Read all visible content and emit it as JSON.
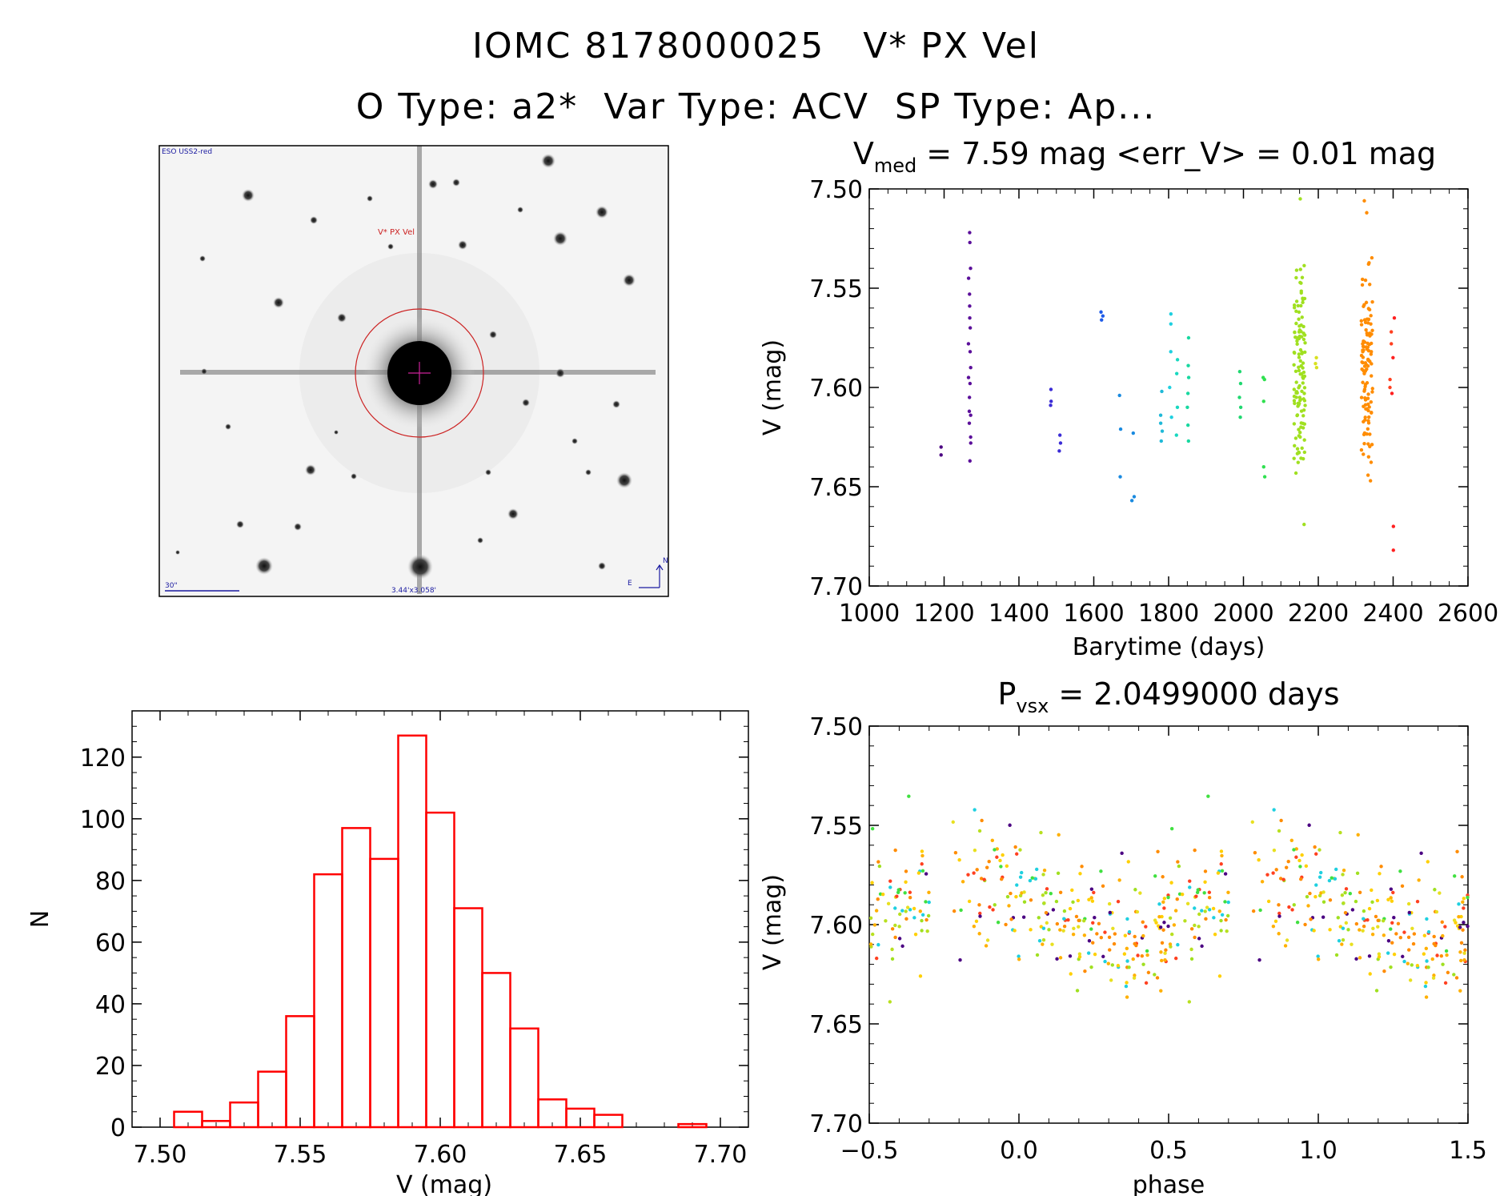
{
  "header": {
    "title": "IOMC 8178000025   V* PX Vel",
    "subtitle": "O Type: a2*  Var Type: ACV  SP Type: Ap..."
  },
  "finder": {
    "survey": "ESO USS2-red",
    "target_label": "V* PX Vel",
    "scale_label": "30\"",
    "fov_label": "3.44'x3.058'",
    "north": "N",
    "east": "E"
  },
  "chart_data": [
    {
      "id": "lightcurve",
      "type": "scatter",
      "title": "V_med = 7.59 mag <err_V> = 0.01 mag",
      "title_parts": {
        "V": "V",
        "sub": "med",
        "rest": " = 7.59 mag <err_V> = 0.01 mag"
      },
      "xlabel": "Barytime (days)",
      "ylabel": "V (mag)",
      "xlim": [
        1000,
        2600
      ],
      "ylim": [
        7.7,
        7.5
      ],
      "y_inverted": true,
      "xticks": [
        "1000",
        "1200",
        "1400",
        "1600",
        "1800",
        "2000",
        "2200",
        "2400",
        "2600"
      ],
      "yticks": [
        "7.50",
        "7.55",
        "7.60",
        "7.65",
        "7.70"
      ],
      "color_scale": "rainbow by time",
      "groups": [
        {
          "x": 1195,
          "color": "#4b0082",
          "values": [
            7.63,
            7.634
          ]
        },
        {
          "x": 1268,
          "color": "#5b0f9a",
          "values": [
            7.522,
            7.527,
            7.54,
            7.545,
            7.553,
            7.559,
            7.565,
            7.57,
            7.578,
            7.582,
            7.59,
            7.595,
            7.598,
            7.605,
            7.612,
            7.614,
            7.618,
            7.625,
            7.628,
            7.637
          ]
        },
        {
          "x": 1486,
          "color": "#3b2cd6",
          "values": [
            7.601,
            7.607,
            7.609
          ]
        },
        {
          "x": 1510,
          "color": "#3b2cd6",
          "values": [
            7.624,
            7.628,
            7.632
          ]
        },
        {
          "x": 1622,
          "color": "#1e5be8",
          "values": [
            7.562,
            7.564,
            7.566
          ]
        },
        {
          "x": 1672,
          "color": "#1a8ae0",
          "values": [
            7.604,
            7.621,
            7.645
          ]
        },
        {
          "x": 1705,
          "color": "#1a8ae0",
          "values": [
            7.623,
            7.655,
            7.657
          ]
        },
        {
          "x": 1780,
          "color": "#1fb9d8",
          "values": [
            7.602,
            7.614,
            7.618,
            7.622,
            7.627
          ]
        },
        {
          "x": 1805,
          "color": "#1fd0e0",
          "values": [
            7.563,
            7.568,
            7.582,
            7.6,
            7.615
          ]
        },
        {
          "x": 1822,
          "color": "#18d8c0",
          "values": [
            7.586,
            7.593,
            7.61,
            7.624
          ]
        },
        {
          "x": 1852,
          "color": "#18d8a0",
          "values": [
            7.575,
            7.589,
            7.595,
            7.603,
            7.61,
            7.619,
            7.627
          ]
        },
        {
          "x": 1990,
          "color": "#20d870",
          "values": [
            7.592,
            7.598,
            7.605,
            7.61,
            7.615
          ]
        },
        {
          "x": 2055,
          "color": "#30e050",
          "values": [
            7.595,
            7.596,
            7.607,
            7.64,
            7.645
          ]
        },
        {
          "x": 2150,
          "color": "#a0e020",
          "range": [
            7.533,
            7.655
          ],
          "count": 120,
          "outliers": [
            7.505,
            7.669
          ]
        },
        {
          "x": 2195,
          "color": "#d8e020",
          "values": [
            7.585,
            7.588,
            7.59
          ]
        },
        {
          "x": 2330,
          "color": "#ff8c00",
          "range": [
            7.533,
            7.647
          ],
          "count": 110,
          "outliers": [
            7.506,
            7.512
          ]
        },
        {
          "x": 2393,
          "color": "#ff4020",
          "values": [
            7.572,
            7.578,
            7.596,
            7.6
          ]
        },
        {
          "x": 2400,
          "color": "#ff2020",
          "values": [
            7.565,
            7.585,
            7.603,
            7.67,
            7.682
          ]
        }
      ]
    },
    {
      "id": "histogram",
      "type": "bar",
      "xlabel": "V (mag)",
      "ylabel": "N",
      "xlim": [
        7.49,
        7.71
      ],
      "ylim": [
        0,
        135
      ],
      "xticks": [
        "7.50",
        "7.55",
        "7.60",
        "7.65",
        "7.70"
      ],
      "yticks": [
        "0",
        "20",
        "40",
        "60",
        "80",
        "100",
        "120"
      ],
      "bar_color": "#ff0000",
      "bin_width": 0.01,
      "bin_starts": [
        7.505,
        7.515,
        7.525,
        7.535,
        7.545,
        7.555,
        7.565,
        7.575,
        7.585,
        7.595,
        7.605,
        7.615,
        7.625,
        7.635,
        7.645,
        7.655,
        7.665,
        7.675,
        7.685
      ],
      "values": [
        5,
        2,
        8,
        18,
        36,
        82,
        97,
        87,
        127,
        102,
        71,
        50,
        32,
        9,
        6,
        4,
        0,
        0,
        1
      ]
    },
    {
      "id": "phased",
      "type": "scatter",
      "title": "P_vsx = 2.0499000 days",
      "title_parts": {
        "P": "P",
        "sub": "vsx",
        "rest": " = 2.0499000 days"
      },
      "xlabel": "phase",
      "ylabel": "V (mag)",
      "xlim": [
        -0.5,
        1.5
      ],
      "ylim": [
        7.7,
        7.5
      ],
      "y_inverted": true,
      "xticks": [
        "−0.5",
        "0.0",
        "0.5",
        "1.0",
        "1.5"
      ],
      "yticks": [
        "7.50",
        "7.55",
        "7.60",
        "7.65",
        "7.70"
      ],
      "period_days": 2.0499,
      "sinusoid": {
        "mean": 7.592,
        "amp": 0.012,
        "scatter": 0.022
      },
      "colors": [
        "#ff8c00",
        "#ff8c00",
        "#ffb000",
        "#ffd000",
        "#e8e020",
        "#b8e020",
        "#a0e020",
        "#40e040",
        "#ff4020",
        "#4b0082",
        "#1fd0e0"
      ],
      "count": 300
    }
  ]
}
